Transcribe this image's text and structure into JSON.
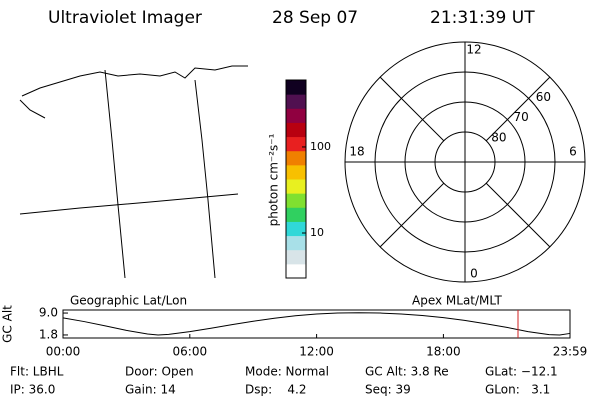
{
  "header": {
    "title": "Ultraviolet Imager",
    "date": "28 Sep 07",
    "time": "21:31:39 UT"
  },
  "map": {
    "label": "Geographic Lat/Lon"
  },
  "colorbar": {
    "label": "photon cm⁻²s⁻¹",
    "log": true,
    "ylim": [
      3,
      600
    ],
    "yticks": [
      10,
      100
    ],
    "colors": [
      "#ffffff",
      "#d8e4e8",
      "#a8e0e8",
      "#30d8d8",
      "#30d060",
      "#80e030",
      "#e8f020",
      "#f8c000",
      "#f08000",
      "#e82020",
      "#b80010",
      "#900040",
      "#501050",
      "#100020"
    ]
  },
  "polar": {
    "label": "Apex MLat/MLT",
    "lat_min": 50,
    "lat_rings": [
      80,
      70,
      60
    ],
    "mlt_ticks": [
      0,
      6,
      12,
      18
    ]
  },
  "chart_data": {
    "type": "line",
    "y_label": "GC Alt",
    "x": [
      0,
      1,
      2,
      3,
      4,
      4.5,
      5,
      6,
      7,
      8,
      9,
      10,
      11,
      12,
      13,
      14,
      15,
      16,
      17,
      18,
      19,
      20,
      21,
      22,
      23,
      23.5,
      23.99
    ],
    "values": [
      7.4,
      6.2,
      4.8,
      3.3,
      2.1,
      1.8,
      2.0,
      2.9,
      4.0,
      5.2,
      6.3,
      7.3,
      8.1,
      8.7,
      9.0,
      9.1,
      9.0,
      8.7,
      8.2,
      7.5,
      6.6,
      5.5,
      4.3,
      2.9,
      1.9,
      1.8,
      2.3
    ],
    "color": "#000000",
    "marker_x": 21.53,
    "marker_color": "#d02020",
    "xlim": [
      0,
      23.99
    ],
    "xticks": [
      {
        "value": 0,
        "label": "00:00"
      },
      {
        "value": 6,
        "label": "06:00"
      },
      {
        "value": 12,
        "label": "12:00"
      },
      {
        "value": 18,
        "label": "18:00"
      },
      {
        "value": 23.99,
        "label": "23:59"
      }
    ],
    "ylim": [
      0.8,
      10.0
    ],
    "yticks": [
      {
        "value": 9.0,
        "label": "9.0"
      },
      {
        "value": 1.8,
        "label": "1.8"
      }
    ]
  },
  "info": [
    [
      "Flt: LBHL",
      "IP: 36.0"
    ],
    [
      "Door: Open",
      "Gain: 14"
    ],
    [
      "Mode: Normal",
      "Dsp:    4.2"
    ],
    [
      "GC Alt: 3.8 Re",
      "Seq: 39"
    ],
    [
      "GLat: −12.1",
      "GLon:   3.1"
    ]
  ]
}
